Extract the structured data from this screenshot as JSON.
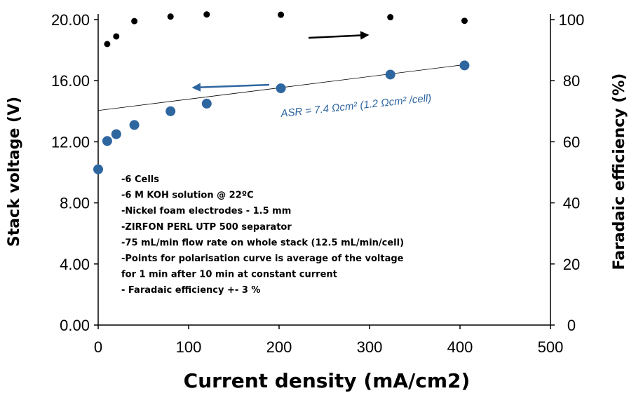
{
  "chart_data": {
    "type": "scatter",
    "xlabel": "Current density (mA/cm2)",
    "ylabel_left": "Stack voltage (V)",
    "ylabel_right": "Faradaic efficiency (%)",
    "x_ticks": [
      "0",
      "100",
      "200",
      "300",
      "400",
      "500"
    ],
    "y_left_ticks": [
      "0.00",
      "4.00",
      "8.00",
      "12.00",
      "16.00",
      "20.00"
    ],
    "y_right_ticks": [
      "0",
      "20",
      "40",
      "60",
      "80",
      "100"
    ],
    "xlim": [
      0,
      500
    ],
    "ylim_left": [
      0,
      20
    ],
    "ylim_right": [
      0,
      100
    ],
    "grid": false,
    "colors": {
      "voltage": "#2e66a0",
      "efficiency": "#000000",
      "annotation": "#2e66a0"
    },
    "series": [
      {
        "axis": "left",
        "marker": "circle-large",
        "x": [
          0,
          10,
          20,
          40,
          80,
          120,
          202,
          323,
          405
        ],
        "y": [
          10.2,
          12.05,
          12.5,
          13.1,
          14.0,
          14.5,
          15.5,
          16.4,
          17.0
        ]
      },
      {
        "axis": "right",
        "marker": "circle-small",
        "x": [
          10,
          20,
          40,
          80,
          120,
          202,
          323,
          405
        ],
        "y": [
          92,
          94.5,
          99.5,
          101,
          101.7,
          101.6,
          100.8,
          99.6
        ]
      }
    ],
    "fit_line": {
      "axis": "left",
      "x": [
        0,
        405
      ],
      "y": [
        14.05,
        17.05
      ]
    },
    "annotations": {
      "asr_label": "ASR = 7.4 Ωcm² (1.2 Ωcm² /cell)",
      "notes": [
        "-6 Cells",
        "-6 M KOH  solution @ 22ºC",
        "-Nickel foam electrodes - 1.5 mm",
        "-ZIRFON PERL UTP 500 separator",
        "-75 mL/min flow rate on whole stack (12.5 mL/min/cell)",
        "-Points for polarisation curve is average of the voltage",
        " for 1 min after 10 min at constant current",
        "- Faradaic efficiency +- 3 %"
      ]
    }
  }
}
